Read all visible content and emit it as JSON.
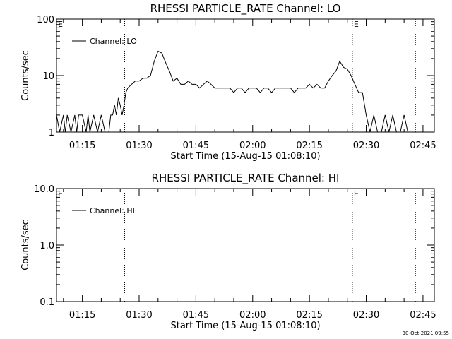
{
  "footer": {
    "timestamp": "30-Oct-2021 09:55"
  },
  "chart_data": [
    {
      "type": "line",
      "title": "RHESSI PARTICLE_RATE Channel: LO",
      "xlabel": "Start Time (15-Aug-15 01:08:10)",
      "ylabel": "Counts/sec",
      "yscale": "log",
      "ylim": [
        1,
        100
      ],
      "xlim": [
        "01:08:10",
        "02:48:00"
      ],
      "x_ticks": [
        "01:15",
        "01:30",
        "01:45",
        "02:00",
        "02:15",
        "02:30",
        "02:45"
      ],
      "y_ticks": [
        "1",
        "10",
        "100"
      ],
      "legend": {
        "label": "Channel: LO",
        "position": "upper-left"
      },
      "markers": [
        {
          "time": "01:26:10",
          "label": ""
        },
        {
          "time": "02:26:20",
          "label": "E"
        },
        {
          "time": "02:43:00",
          "label": ""
        }
      ],
      "corner_label": "E",
      "series": [
        {
          "name": "Channel: LO",
          "x": [
            "01:08:10",
            "01:09",
            "01:10",
            "01:10:30",
            "01:11",
            "01:12",
            "01:13",
            "01:13:30",
            "01:14",
            "01:15",
            "01:16",
            "01:16:30",
            "01:17",
            "01:18",
            "01:19",
            "01:20",
            "01:21",
            "01:22",
            "01:22:30",
            "01:23",
            "01:23:30",
            "01:24",
            "01:24:30",
            "01:25",
            "01:25:30",
            "01:26",
            "01:26:30",
            "01:27",
            "01:28",
            "01:29",
            "01:30",
            "01:31",
            "01:32",
            "01:33",
            "01:34",
            "01:35",
            "01:36",
            "01:37",
            "01:38",
            "01:39",
            "01:40",
            "01:41",
            "01:42",
            "01:43",
            "01:44",
            "01:45",
            "01:46",
            "01:47",
            "01:48",
            "01:49",
            "01:50",
            "01:51",
            "01:52",
            "01:53",
            "01:54",
            "01:55",
            "01:56",
            "01:57",
            "01:58",
            "01:59",
            "02:00",
            "02:01",
            "02:02",
            "02:03",
            "02:04",
            "02:05",
            "02:06",
            "02:07",
            "02:08",
            "02:09",
            "02:10",
            "02:11",
            "02:12",
            "02:13",
            "02:14",
            "02:15",
            "02:16",
            "02:17",
            "02:18",
            "02:19",
            "02:20",
            "02:21",
            "02:22",
            "02:23",
            "02:24",
            "02:25",
            "02:26",
            "02:27",
            "02:28",
            "02:29",
            "02:30",
            "02:31",
            "02:32",
            "02:33",
            "02:34",
            "02:35",
            "02:36",
            "02:37",
            "02:38",
            "02:39",
            "02:40",
            "02:41",
            "02:42",
            "02:43",
            "02:44",
            "02:45",
            "02:46",
            "02:47",
            "02:48"
          ],
          "y": [
            2,
            1,
            2,
            1,
            2,
            1,
            2,
            1,
            2,
            2,
            1,
            2,
            1,
            2,
            1,
            2,
            1,
            1,
            2,
            2,
            3,
            2,
            4,
            3,
            2,
            3,
            5,
            6,
            7,
            8,
            8,
            9,
            9,
            10,
            18,
            27,
            25,
            17,
            12,
            8,
            9,
            7,
            7,
            8,
            7,
            7,
            6,
            7,
            8,
            7,
            6,
            6,
            6,
            6,
            6,
            5,
            6,
            6,
            5,
            6,
            6,
            6,
            5,
            6,
            6,
            5,
            6,
            6,
            6,
            6,
            6,
            5,
            6,
            6,
            6,
            7,
            6,
            7,
            6,
            6,
            8,
            10,
            12,
            18,
            14,
            13,
            10,
            7,
            5,
            5,
            2,
            1,
            2,
            1,
            1,
            2,
            1,
            2,
            1,
            1,
            2,
            1,
            1,
            1,
            1,
            1,
            1,
            1,
            1
          ]
        }
      ]
    },
    {
      "type": "line",
      "title": "RHESSI PARTICLE_RATE Channel: HI",
      "xlabel": "Start Time (15-Aug-15 01:08:10)",
      "ylabel": "Counts/sec",
      "yscale": "log",
      "ylim": [
        0.1,
        10
      ],
      "xlim": [
        "01:08:10",
        "02:48:00"
      ],
      "x_ticks": [
        "01:15",
        "01:30",
        "01:45",
        "02:00",
        "02:15",
        "02:30",
        "02:45"
      ],
      "y_ticks": [
        "0.1",
        "1.0",
        "10.0"
      ],
      "legend": {
        "label": "Channel: HI",
        "position": "upper-left"
      },
      "markers": [
        {
          "time": "01:26:10",
          "label": ""
        },
        {
          "time": "02:26:20",
          "label": "E"
        },
        {
          "time": "02:43:00",
          "label": ""
        }
      ],
      "corner_label": "E",
      "series": [
        {
          "name": "Channel: HI",
          "x": [],
          "y": []
        }
      ]
    }
  ]
}
